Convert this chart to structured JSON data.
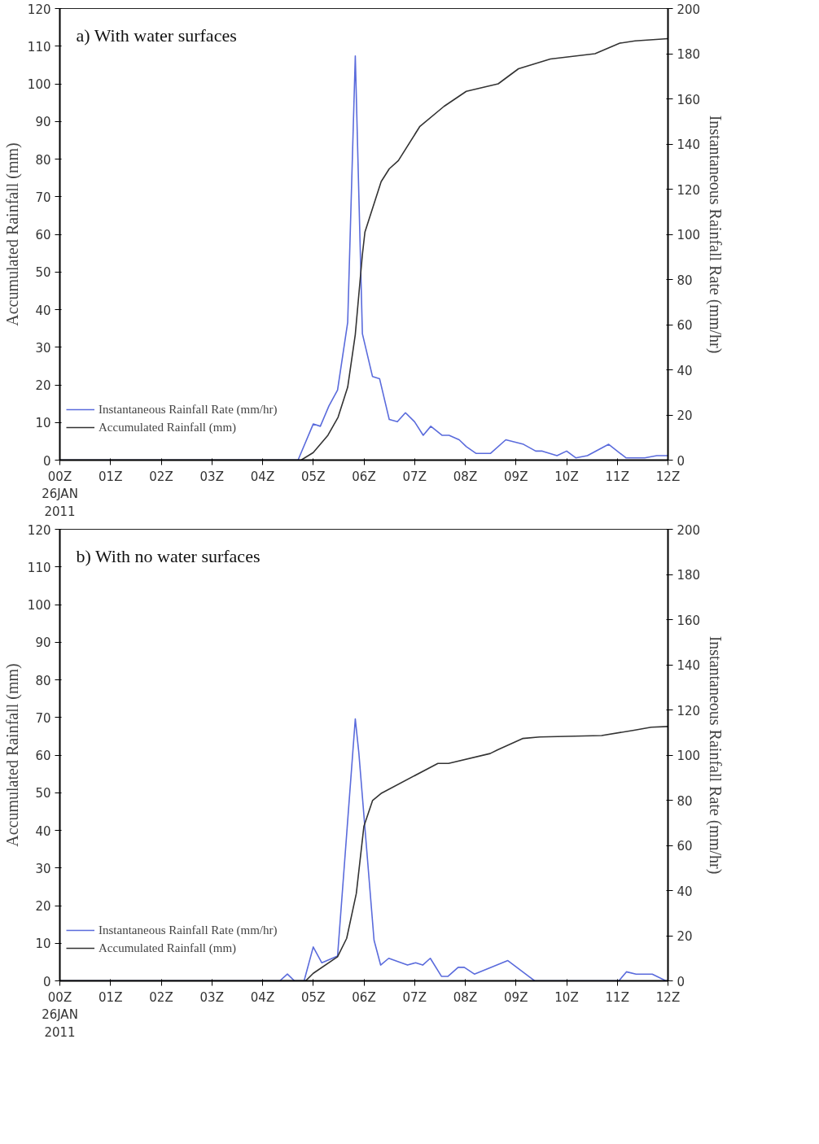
{
  "chart_data": [
    {
      "type": "line",
      "title": "a)  With water surfaces",
      "ylabel": "Accumulated Rainfall (mm)",
      "y2label": "Instantaneous Rainfall Rate (mm/hr)",
      "xlim": [
        0,
        12
      ],
      "xticks": [
        {
          "value": 0,
          "label": "00Z\n26JAN\n2011"
        },
        {
          "value": 1,
          "label": "01Z"
        },
        {
          "value": 2,
          "label": "02Z"
        },
        {
          "value": 3,
          "label": "03Z"
        },
        {
          "value": 4,
          "label": "04Z"
        },
        {
          "value": 5,
          "label": "05Z"
        },
        {
          "value": 6,
          "label": "06Z"
        },
        {
          "value": 7,
          "label": "07Z"
        },
        {
          "value": 8,
          "label": "08Z"
        },
        {
          "value": 9,
          "label": "09Z"
        },
        {
          "value": 10,
          "label": "10Z"
        },
        {
          "value": 11,
          "label": "11Z"
        },
        {
          "value": 12,
          "label": "12Z"
        }
      ],
      "ylim": [
        0,
        120
      ],
      "yticks": [
        0,
        10,
        20,
        30,
        40,
        50,
        60,
        70,
        80,
        90,
        100,
        110,
        120
      ],
      "y2lim": [
        0,
        200
      ],
      "y2ticks": [
        0,
        20,
        40,
        60,
        80,
        100,
        120,
        140,
        160,
        180,
        200
      ],
      "grid": false,
      "legend": "bottom left",
      "marker": "none",
      "line_style": "solid",
      "series": [
        {
          "name": "Instantaneous Rainfall Rate (mm/hr)",
          "color": "#5a6bdc",
          "axis": "y2",
          "x": [
            0,
            4.7,
            5.0,
            5.14,
            5.31,
            5.48,
            5.68,
            5.83,
            5.97,
            6.17,
            6.31,
            6.5,
            6.66,
            6.82,
            7.0,
            7.17,
            7.32,
            7.54,
            7.68,
            7.88,
            8.02,
            8.21,
            8.5,
            8.8,
            9.15,
            9.39,
            9.52,
            9.81,
            10.0,
            10.18,
            10.41,
            10.83,
            11.17,
            11.54,
            11.78,
            12
          ],
          "values": [
            0,
            0,
            16,
            15,
            24,
            31,
            61,
            179,
            56,
            37,
            36,
            18,
            17,
            21,
            17,
            11,
            15,
            11,
            11,
            9,
            6,
            3,
            3,
            9,
            7,
            4,
            4,
            2,
            4,
            1,
            2,
            7,
            1,
            1,
            2,
            2
          ]
        },
        {
          "name": "Accumulated Rainfall (mm)",
          "color": "#333333",
          "x": [
            0,
            4.76,
            5.0,
            5.29,
            5.49,
            5.68,
            5.83,
            5.97,
            6.02,
            6.34,
            6.5,
            6.68,
            7.1,
            7.58,
            8.02,
            8.65,
            9.05,
            9.68,
            10.56,
            11.05,
            11.35,
            12
          ],
          "values": [
            0,
            0,
            2,
            6.6,
            11.4,
            19.4,
            33.4,
            54.6,
            60.6,
            74,
            77.4,
            79.6,
            88.6,
            94,
            98,
            100,
            104,
            106.6,
            108,
            110.8,
            111.4,
            112
          ]
        }
      ]
    },
    {
      "type": "line",
      "title": "b)  With no water surfaces",
      "ylabel": "Accumulated Rainfall (mm)",
      "y2label": "Instantaneous Rainfall Rate (mm/hr)",
      "xlim": [
        0,
        12
      ],
      "xticks": [
        {
          "value": 0,
          "label": "00Z\n26JAN\n2011"
        },
        {
          "value": 1,
          "label": "01Z"
        },
        {
          "value": 2,
          "label": "02Z"
        },
        {
          "value": 3,
          "label": "03Z"
        },
        {
          "value": 4,
          "label": "04Z"
        },
        {
          "value": 5,
          "label": "05Z"
        },
        {
          "value": 6,
          "label": "06Z"
        },
        {
          "value": 7,
          "label": "07Z"
        },
        {
          "value": 8,
          "label": "08Z"
        },
        {
          "value": 9,
          "label": "09Z"
        },
        {
          "value": 10,
          "label": "10Z"
        },
        {
          "value": 11,
          "label": "11Z"
        },
        {
          "value": 12,
          "label": "12Z"
        }
      ],
      "ylim": [
        0,
        120
      ],
      "yticks": [
        0,
        10,
        20,
        30,
        40,
        50,
        60,
        70,
        80,
        90,
        100,
        110,
        120
      ],
      "y2lim": [
        0,
        200
      ],
      "y2ticks": [
        0,
        20,
        40,
        60,
        80,
        100,
        120,
        140,
        160,
        180,
        200
      ],
      "grid": false,
      "legend": "bottom left",
      "marker": "none",
      "line_style": "solid",
      "series": [
        {
          "name": "Instantaneous Rainfall Rate (mm/hr)",
          "color": "#5a6bdc",
          "axis": "y2",
          "x": [
            0,
            4.34,
            4.49,
            4.63,
            4.82,
            5.0,
            5.17,
            5.48,
            5.78,
            5.83,
            5.9,
            6.2,
            6.33,
            6.49,
            6.86,
            7.02,
            7.16,
            7.31,
            7.53,
            7.66,
            7.86,
            7.98,
            8.18,
            8.84,
            9.25,
            9.37,
            11.03,
            11.18,
            11.37,
            11.69,
            11.96,
            12
          ],
          "values": [
            0,
            0,
            3,
            0,
            0,
            15,
            8,
            11,
            101,
            116,
            101,
            18,
            7,
            10,
            7,
            8,
            7,
            10,
            2,
            2,
            6,
            6,
            3,
            9,
            2,
            0,
            0,
            4,
            3,
            3,
            0,
            0
          ]
        },
        {
          "name": "Accumulated Rainfall (mm)",
          "color": "#333333",
          "x": [
            0,
            4.85,
            5.0,
            5.48,
            5.66,
            5.85,
            6.0,
            6.17,
            6.35,
            7.46,
            7.67,
            8.49,
            8.64,
            9.13,
            9.47,
            10.69,
            11.33,
            11.67,
            12
          ],
          "values": [
            0,
            0,
            2,
            6.4,
            11.3,
            23.2,
            41.1,
            47.9,
            49.9,
            57.8,
            57.8,
            60.4,
            61.4,
            64.4,
            64.8,
            65.2,
            66.6,
            67.4,
            67.6
          ]
        }
      ]
    }
  ]
}
